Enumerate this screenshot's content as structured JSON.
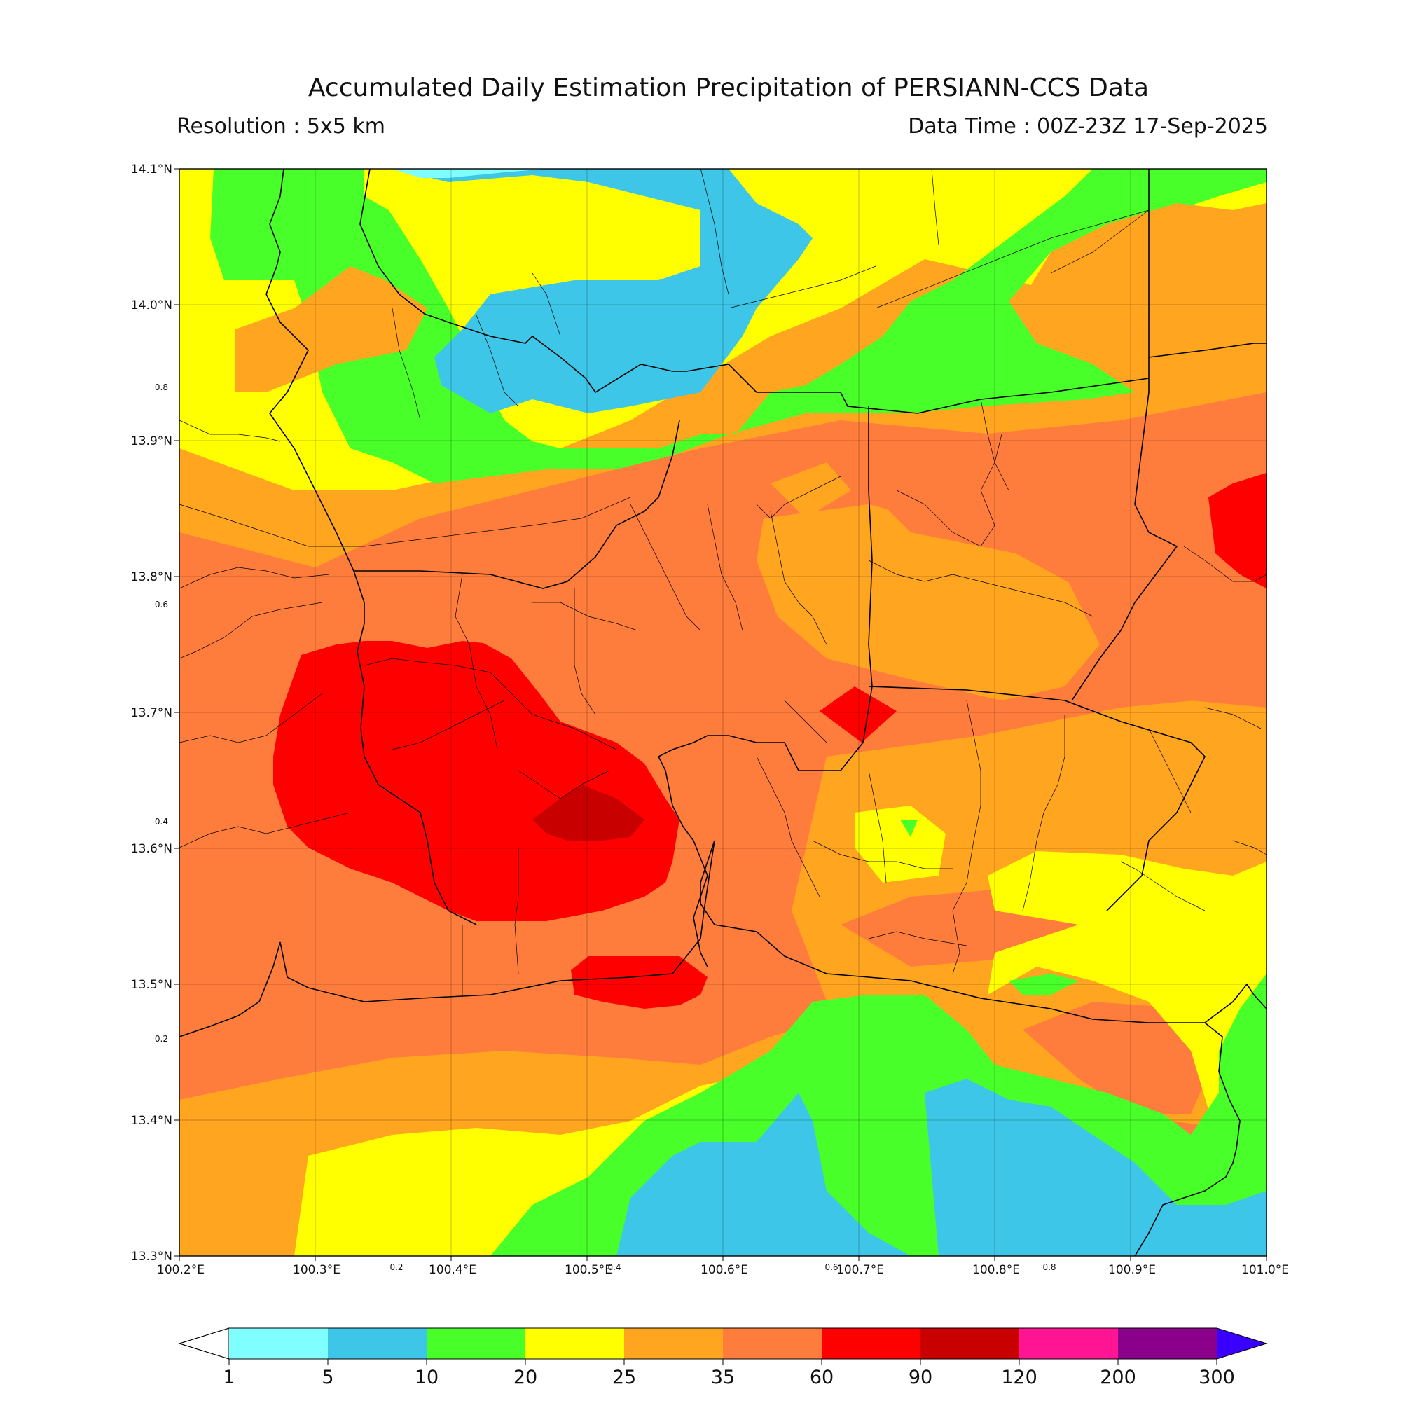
{
  "title": "Accumulated Daily Estimation Precipitation of PERSIANN-CCS Data",
  "resolution": "Resolution : 5x5 km",
  "data_time": "Data Time : 00Z-23Z 17-Sep-2025",
  "axes": {
    "lon_labels": [
      "100.2°E",
      "100.3°E",
      "100.4°E",
      "100.5°E",
      "100.6°E",
      "100.7°E",
      "100.8°E",
      "100.9°E",
      "101.0°E"
    ],
    "lat_labels": [
      "14.1°N",
      "14.0°N",
      "13.9°N",
      "13.8°N",
      "13.7°N",
      "13.6°N",
      "13.5°N",
      "13.4°N",
      "13.3°N"
    ],
    "inner_x_labels": [
      "0.2",
      "0.4",
      "0.6",
      "0.8"
    ],
    "inner_y_labels": [
      "0.8",
      "0.6",
      "0.4",
      "0.2"
    ],
    "lon_range": [
      100.2,
      101.0
    ],
    "lat_range": [
      13.3,
      14.1
    ]
  },
  "colorbar": {
    "levels": [
      "1",
      "5",
      "10",
      "20",
      "25",
      "35",
      "60",
      "90",
      "120",
      "200",
      "300"
    ],
    "colors": [
      "#7fffff",
      "#3ec6e8",
      "#48ff2a",
      "#ffff00",
      "#ffa51f",
      "#ff7d3c",
      "#ff0000",
      "#c90000",
      "#ff1493",
      "#8b008b"
    ],
    "under_color": "#ffffff",
    "over_color": "#3a00ff"
  },
  "precip_colors": {
    "p1": "#7fffff",
    "p5": "#3ec6e8",
    "p10": "#48ff2a",
    "p20": "#ffff00",
    "p25": "#ffa51f",
    "p35": "#ff7d3c",
    "p60": "#ff0000",
    "p90": "#c90000"
  }
}
